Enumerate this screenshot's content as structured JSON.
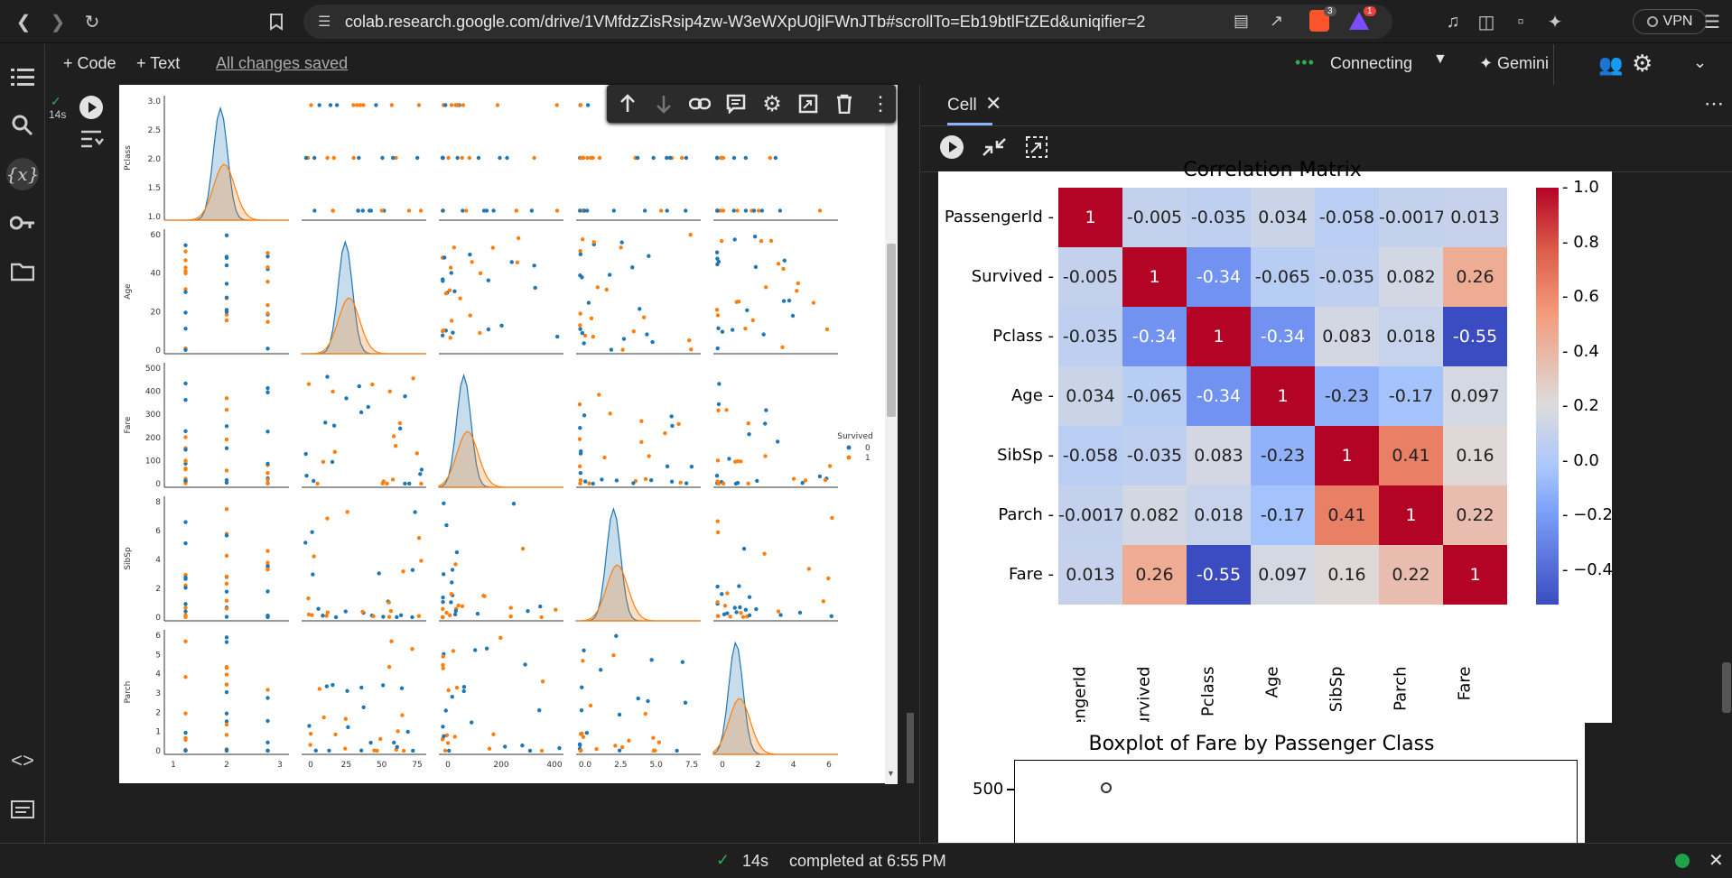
{
  "browser": {
    "url": "colab.research.google.com/drive/1VMfdzZisRsip4zw-W3eWXpU0jlFWnJTb#scrollTo=Eb19btlFtZEd&uniqifier=2",
    "brave_count": "3",
    "alert_count": "1",
    "vpn_label": "VPN"
  },
  "toolbar": {
    "code_label": "+ Code",
    "text_label": "+ Text",
    "saved_label": "All changes saved",
    "connecting_label": "Connecting",
    "gemini_label": "Gemini"
  },
  "cell": {
    "exec_time": "14s"
  },
  "panel": {
    "tab_label": "Cell"
  },
  "heatmap": {
    "title": "Correlation Matrix",
    "labels": [
      "PassengerId",
      "Survived",
      "Pclass",
      "Age",
      "SibSp",
      "Parch",
      "Fare"
    ],
    "matrix": [
      [
        1,
        -0.005,
        -0.035,
        0.034,
        -0.058,
        -0.0017,
        0.013
      ],
      [
        -0.005,
        1,
        -0.34,
        -0.065,
        -0.035,
        0.082,
        0.26
      ],
      [
        -0.035,
        -0.34,
        1,
        -0.34,
        0.083,
        0.018,
        -0.55
      ],
      [
        0.034,
        -0.065,
        -0.34,
        1,
        -0.23,
        -0.17,
        0.097
      ],
      [
        -0.058,
        -0.035,
        0.083,
        -0.23,
        1,
        0.41,
        0.16
      ],
      [
        -0.0017,
        0.082,
        0.018,
        -0.17,
        0.41,
        1,
        0.22
      ],
      [
        0.013,
        0.26,
        -0.55,
        0.097,
        0.16,
        0.22,
        1
      ]
    ],
    "cell_text": [
      [
        "1",
        "-0.005",
        "-0.035",
        "0.034",
        "-0.058",
        "-0.0017",
        "0.013"
      ],
      [
        "-0.005",
        "1",
        "-0.34",
        "-0.065",
        "-0.035",
        "0.082",
        "0.26"
      ],
      [
        "-0.035",
        "-0.34",
        "1",
        "-0.34",
        "0.083",
        "0.018",
        "-0.55"
      ],
      [
        "0.034",
        "-0.065",
        "-0.34",
        "1",
        "-0.23",
        "-0.17",
        "0.097"
      ],
      [
        "-0.058",
        "-0.035",
        "0.083",
        "-0.23",
        "1",
        "0.41",
        "0.16"
      ],
      [
        "-0.0017",
        "0.082",
        "0.018",
        "-0.17",
        "0.41",
        "1",
        "0.22"
      ],
      [
        "0.013",
        "0.26",
        "-0.55",
        "0.097",
        "0.16",
        "0.22",
        "1"
      ]
    ],
    "colorbar_ticks": [
      "1.0",
      "0.8",
      "0.6",
      "0.4",
      "0.2",
      "0.0",
      "−0.2",
      "−0.4"
    ]
  },
  "boxplot": {
    "title": "Boxplot of Fare by Passenger Class",
    "ytick": "500"
  },
  "pairplot": {
    "vars": [
      "Pclass",
      "Age",
      "Fare",
      "SibSp",
      "Parch"
    ],
    "legend_title": "Survived",
    "legend_items": [
      "0",
      "1"
    ],
    "xticks": [
      [
        "1",
        "2",
        "3"
      ],
      [
        "0",
        "25",
        "50",
        "75"
      ],
      [
        "0",
        "200",
        "400"
      ],
      [
        "0.0",
        "2.5",
        "5.0",
        "7.5"
      ],
      [
        "0",
        "2",
        "4",
        "6"
      ]
    ],
    "yticks": [
      [
        "1.0",
        "1.5",
        "2.0",
        "2.5",
        "3.0"
      ],
      [
        "0",
        "20",
        "40",
        "60"
      ],
      [
        "0",
        "100",
        "200",
        "300",
        "400",
        "500"
      ],
      [
        "0",
        "2",
        "4",
        "6",
        "8"
      ],
      [
        "0",
        "1",
        "2",
        "3",
        "4",
        "5",
        "6"
      ]
    ],
    "colors": {
      "0": "#1f77b4",
      "1": "#ff7f0e"
    }
  },
  "status": {
    "time": "14s",
    "completed": "completed at 6:55 PM"
  },
  "colors": {
    "accent": "#8ab4f8",
    "connecting": "#34a853"
  }
}
